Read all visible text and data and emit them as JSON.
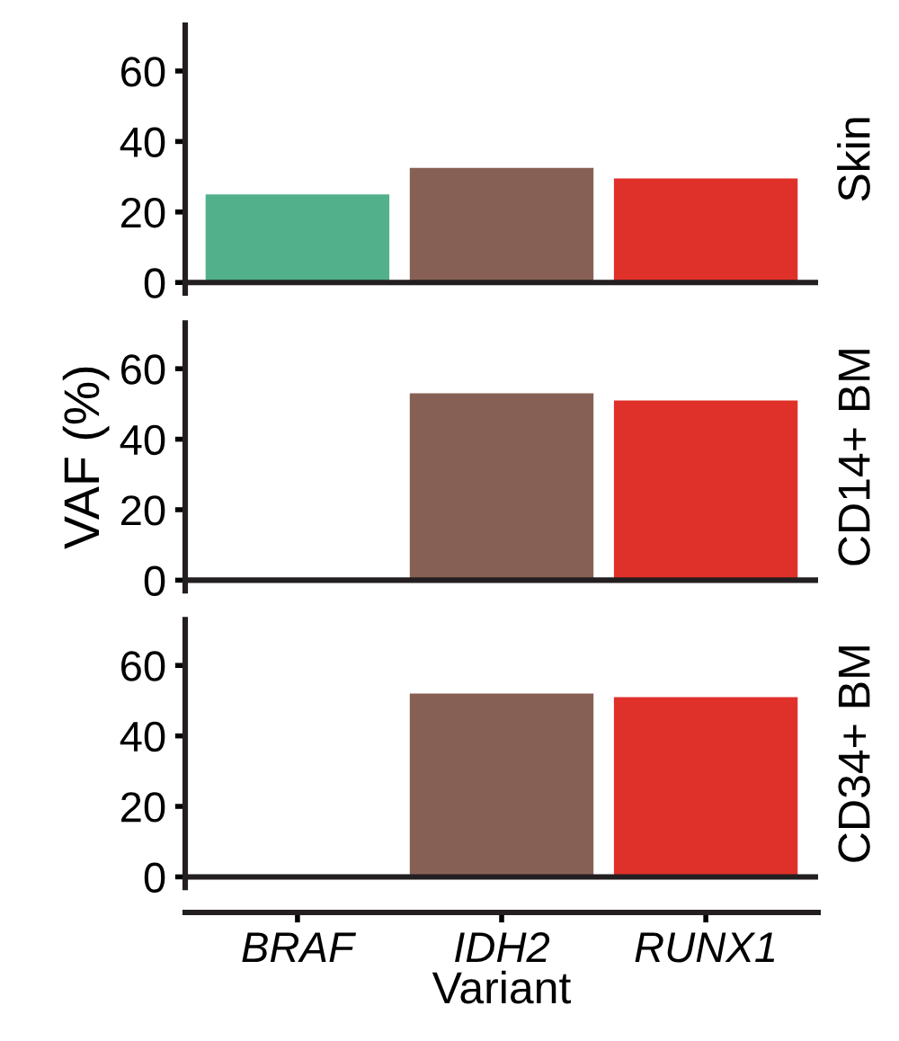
{
  "chart_data": [
    {
      "type": "bar",
      "title": "Skin",
      "categories": [
        null,
        null,
        null
      ],
      "values": [
        25,
        32.5,
        29.5
      ],
      "colors": [
        "#52b08a",
        "#876055",
        "#e0302a"
      ],
      "ylim": [
        -3,
        73
      ],
      "yticks": [
        0,
        20,
        40,
        60
      ],
      "tick_labels": "y",
      "ref_lines": [
        {
          "axis": "y",
          "value": 0
        }
      ]
    },
    {
      "type": "bar",
      "title": "CD14+ BM",
      "ylabel": "VAF (%)",
      "categories": [
        null,
        null,
        null
      ],
      "values": [
        0,
        53,
        51
      ],
      "colors": [
        "#52b08a",
        "#876055",
        "#e0302a"
      ],
      "ylim": [
        -3,
        73
      ],
      "yticks": [
        0,
        20,
        40,
        60
      ],
      "tick_labels": "y",
      "ref_lines": [
        {
          "axis": "y",
          "value": 0
        }
      ]
    },
    {
      "type": "bar",
      "title": "CD34+ BM",
      "xlabel": "Variant",
      "categories": [
        "BRAF",
        "IDH2",
        "RUNX1"
      ],
      "values": [
        0,
        52,
        51
      ],
      "colors": [
        "#52b08a",
        "#876055",
        "#e0302a"
      ],
      "ylim": [
        -3,
        73
      ],
      "yticks": [
        0,
        20,
        40,
        60
      ],
      "ref_lines": [
        {
          "axis": "y",
          "value": 0
        }
      ]
    }
  ]
}
